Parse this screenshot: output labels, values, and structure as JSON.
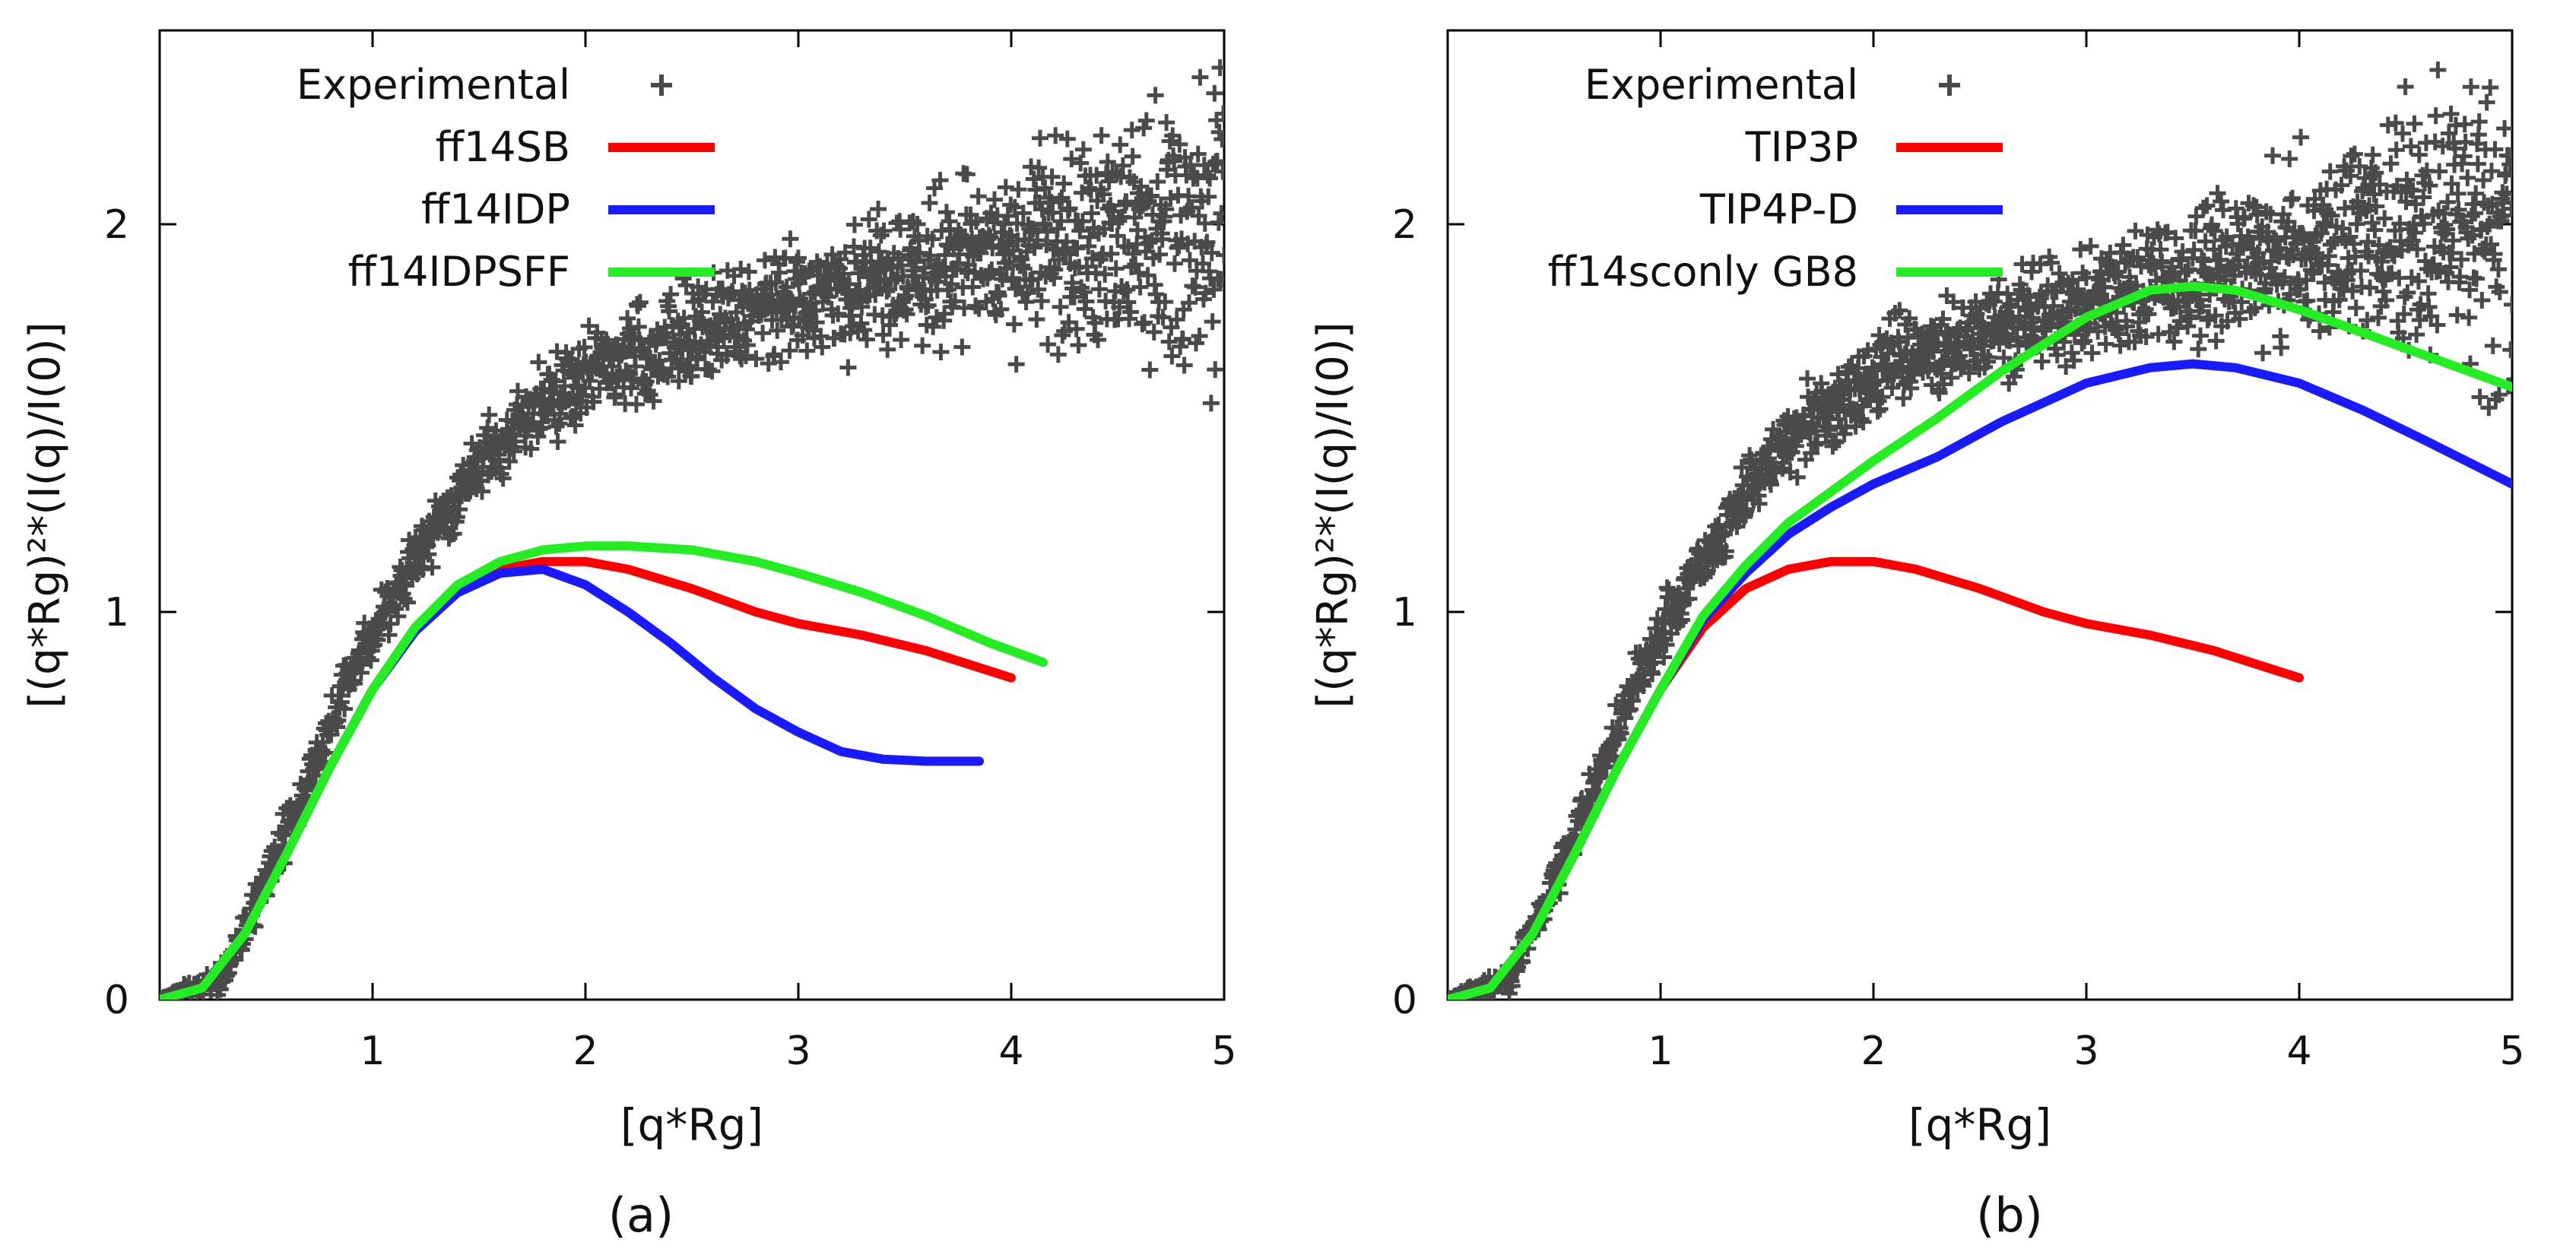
{
  "colors": {
    "experimental": "#4a4a4a",
    "red": "#ff0000",
    "blue": "#1a1aff",
    "green": "#22ee22",
    "axis": "#000000"
  },
  "chart_data": [
    {
      "type": "line",
      "panel_label": "(a)",
      "xlabel": "[q*Rg]",
      "ylabel": "[(q*Rg)²*(I(q)/I(0)]",
      "xlim": [
        0,
        5
      ],
      "ylim": [
        0,
        2.5
      ],
      "xticks": [
        1,
        2,
        3,
        4,
        5
      ],
      "yticks": [
        0,
        1,
        2
      ],
      "legend_position": "top-left",
      "experimental": {
        "name": "Experimental",
        "marker": "+",
        "band": [
          [
            0.0,
            0.0,
            0.0
          ],
          [
            0.3,
            0.06,
            0.03
          ],
          [
            0.6,
            0.43,
            0.04
          ],
          [
            0.9,
            0.84,
            0.05
          ],
          [
            1.2,
            1.14,
            0.05
          ],
          [
            1.5,
            1.38,
            0.06
          ],
          [
            1.8,
            1.53,
            0.07
          ],
          [
            2.1,
            1.64,
            0.08
          ],
          [
            2.5,
            1.72,
            0.09
          ],
          [
            3.0,
            1.8,
            0.1
          ],
          [
            3.5,
            1.87,
            0.12
          ],
          [
            4.0,
            1.93,
            0.15
          ],
          [
            4.5,
            1.98,
            0.2
          ],
          [
            5.0,
            2.0,
            0.3
          ]
        ]
      },
      "series": [
        {
          "name": "ff14SB",
          "color": "#ff0000",
          "x": [
            0.0,
            0.2,
            0.4,
            0.6,
            0.8,
            1.0,
            1.2,
            1.4,
            1.6,
            1.8,
            2.0,
            2.2,
            2.5,
            2.8,
            3.0,
            3.3,
            3.6,
            4.0
          ],
          "y": [
            0.0,
            0.03,
            0.17,
            0.38,
            0.6,
            0.8,
            0.96,
            1.06,
            1.11,
            1.13,
            1.13,
            1.11,
            1.06,
            1.0,
            0.97,
            0.94,
            0.9,
            0.83
          ]
        },
        {
          "name": "ff14IDP",
          "color": "#1a1aff",
          "x": [
            0.0,
            0.2,
            0.4,
            0.6,
            0.8,
            1.0,
            1.2,
            1.4,
            1.6,
            1.8,
            2.0,
            2.2,
            2.4,
            2.6,
            2.8,
            3.0,
            3.2,
            3.4,
            3.6,
            3.85
          ],
          "y": [
            0.0,
            0.03,
            0.17,
            0.38,
            0.6,
            0.8,
            0.95,
            1.05,
            1.1,
            1.11,
            1.07,
            1.0,
            0.92,
            0.83,
            0.75,
            0.69,
            0.64,
            0.62,
            0.615,
            0.615
          ]
        },
        {
          "name": "ff14IDPSFF",
          "color": "#22ee22",
          "x": [
            0.0,
            0.2,
            0.4,
            0.6,
            0.8,
            1.0,
            1.2,
            1.4,
            1.6,
            1.8,
            2.0,
            2.2,
            2.5,
            2.8,
            3.0,
            3.3,
            3.6,
            3.9,
            4.15
          ],
          "y": [
            0.0,
            0.03,
            0.17,
            0.38,
            0.6,
            0.8,
            0.96,
            1.07,
            1.13,
            1.16,
            1.17,
            1.17,
            1.16,
            1.13,
            1.1,
            1.05,
            0.99,
            0.92,
            0.87
          ]
        }
      ]
    },
    {
      "type": "line",
      "panel_label": "(b)",
      "xlabel": "[q*Rg]",
      "ylabel": "[(q*Rg)²*(I(q)/I(0)]",
      "xlim": [
        0,
        5
      ],
      "ylim": [
        0,
        2.5
      ],
      "xticks": [
        1,
        2,
        3,
        4,
        5
      ],
      "yticks": [
        0,
        1,
        2
      ],
      "legend_position": "top-left",
      "experimental": {
        "name": "Experimental",
        "marker": "+",
        "band": [
          [
            0.0,
            0.0,
            0.0
          ],
          [
            0.3,
            0.06,
            0.03
          ],
          [
            0.6,
            0.43,
            0.04
          ],
          [
            0.9,
            0.84,
            0.05
          ],
          [
            1.2,
            1.14,
            0.05
          ],
          [
            1.5,
            1.38,
            0.06
          ],
          [
            1.8,
            1.53,
            0.07
          ],
          [
            2.1,
            1.64,
            0.08
          ],
          [
            2.5,
            1.72,
            0.09
          ],
          [
            3.0,
            1.8,
            0.1
          ],
          [
            3.5,
            1.87,
            0.12
          ],
          [
            4.0,
            1.93,
            0.15
          ],
          [
            4.5,
            1.98,
            0.2
          ],
          [
            5.0,
            2.0,
            0.3
          ]
        ]
      },
      "series": [
        {
          "name": "TIP3P",
          "color": "#ff0000",
          "x": [
            0.0,
            0.2,
            0.4,
            0.6,
            0.8,
            1.0,
            1.2,
            1.4,
            1.6,
            1.8,
            2.0,
            2.2,
            2.5,
            2.8,
            3.0,
            3.3,
            3.6,
            4.0
          ],
          "y": [
            0.0,
            0.03,
            0.17,
            0.38,
            0.6,
            0.8,
            0.96,
            1.06,
            1.11,
            1.13,
            1.13,
            1.11,
            1.06,
            1.0,
            0.97,
            0.94,
            0.9,
            0.83
          ]
        },
        {
          "name": "TIP4P-D",
          "color": "#1a1aff",
          "x": [
            0.0,
            0.2,
            0.4,
            0.6,
            0.8,
            1.0,
            1.2,
            1.4,
            1.6,
            1.8,
            2.0,
            2.3,
            2.6,
            3.0,
            3.3,
            3.5,
            3.7,
            4.0,
            4.3,
            4.6,
            5.0
          ],
          "y": [
            0.0,
            0.03,
            0.17,
            0.38,
            0.6,
            0.8,
            0.98,
            1.1,
            1.2,
            1.27,
            1.33,
            1.4,
            1.49,
            1.59,
            1.63,
            1.64,
            1.63,
            1.59,
            1.52,
            1.44,
            1.33
          ]
        },
        {
          "name": "ff14sconly GB8",
          "color": "#22ee22",
          "x": [
            0.0,
            0.2,
            0.4,
            0.6,
            0.8,
            1.0,
            1.2,
            1.4,
            1.6,
            1.8,
            2.0,
            2.3,
            2.6,
            3.0,
            3.3,
            3.5,
            3.7,
            4.0,
            4.3,
            4.6,
            5.0
          ],
          "y": [
            0.0,
            0.03,
            0.17,
            0.38,
            0.6,
            0.8,
            0.99,
            1.12,
            1.23,
            1.31,
            1.39,
            1.5,
            1.62,
            1.76,
            1.83,
            1.84,
            1.83,
            1.78,
            1.72,
            1.66,
            1.58
          ]
        }
      ]
    }
  ]
}
